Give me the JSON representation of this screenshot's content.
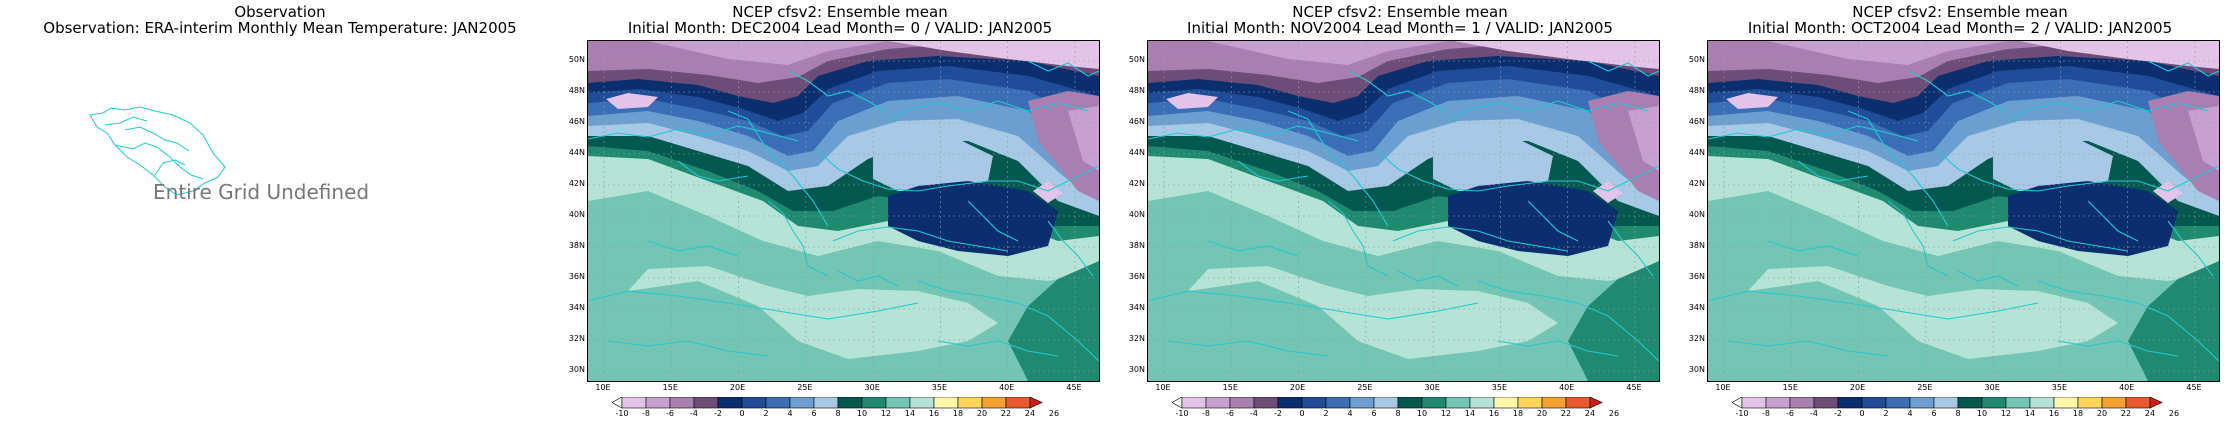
{
  "obs_panel": {
    "title_line1": "Observation",
    "title_line2": "Observation: ERA-interim Monthly Mean Temperature: JAN2005",
    "message": "Entire Grid Undefined"
  },
  "forecast_panels": [
    {
      "title_line1": "NCEP cfsv2: Ensemble mean",
      "title_line2": "Initial Month: DEC2004   Lead Month= 0 / VALID: JAN2005"
    },
    {
      "title_line1": "NCEP cfsv2: Ensemble mean",
      "title_line2": "Initial Month: NOV2004   Lead Month= 1 / VALID: JAN2005"
    },
    {
      "title_line1": "NCEP cfsv2: Ensemble mean",
      "title_line2": "Initial Month: OCT2004   Lead Month= 2 / VALID: JAN2005"
    }
  ],
  "lat_labels": [
    "50N",
    "48N",
    "46N",
    "44N",
    "42N",
    "40N",
    "38N",
    "36N",
    "34N",
    "32N",
    "30N"
  ],
  "lon_labels": [
    "10E",
    "15E",
    "20E",
    "25E",
    "30E",
    "35E",
    "40E",
    "45E"
  ],
  "colorbar": {
    "labels": [
      "-10",
      "-8",
      "-6",
      "-4",
      "-2",
      "0",
      "2",
      "4",
      "6",
      "8",
      "10",
      "12",
      "14",
      "16",
      "18",
      "20",
      "22",
      "24",
      "26"
    ],
    "colors": [
      "#ffffff",
      "#e3c4e8",
      "#c8a0d0",
      "#a87fb0",
      "#6e4c78",
      "#0b2f6e",
      "#1f4d9a",
      "#3a6fb8",
      "#6a9fd0",
      "#a7c9e6",
      "#03584f",
      "#1f8a70",
      "#72c6b3",
      "#b5e3d6",
      "#fff7a8",
      "#ffd55a",
      "#f5a030",
      "#e65a2e",
      "#cc1d1d"
    ]
  },
  "colors": {
    "coast": "#22c8d2",
    "grid": "#9a9a9a"
  }
}
